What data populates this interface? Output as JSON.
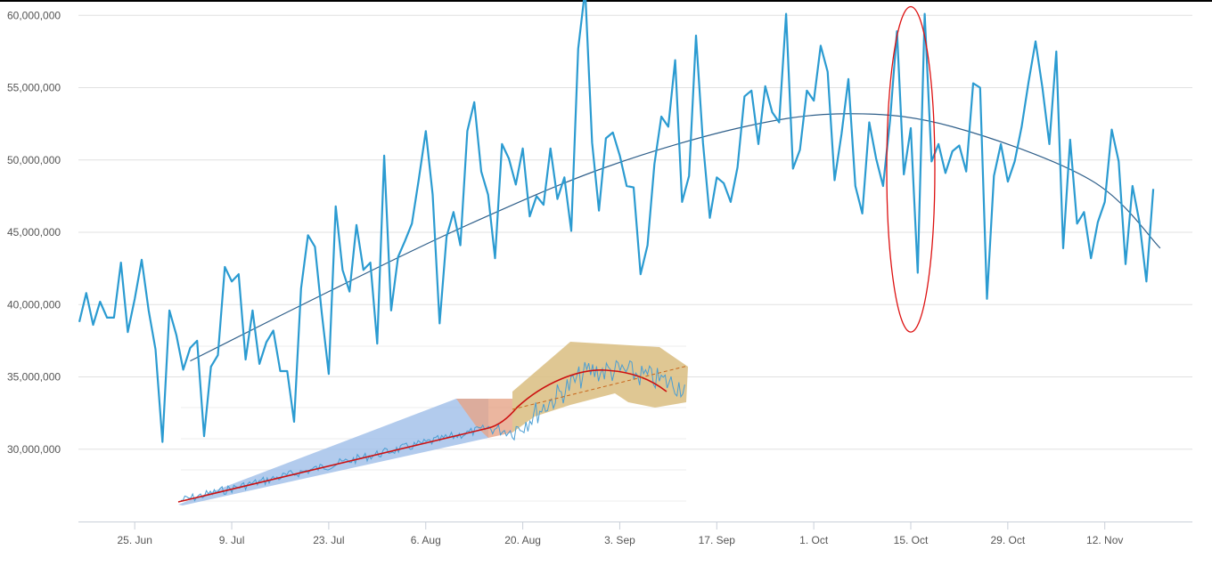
{
  "chart_data": [
    {
      "type": "line",
      "title": "",
      "xlabel": "",
      "ylabel": "",
      "ylim": [
        25000000,
        60000000
      ],
      "grid": true,
      "y_ticks": [
        {
          "value": 30000000,
          "label": "30,000,000"
        },
        {
          "value": 35000000,
          "label": "35,000,000"
        },
        {
          "value": 40000000,
          "label": "40,000,000"
        },
        {
          "value": 45000000,
          "label": "45,000,000"
        },
        {
          "value": 50000000,
          "label": "50,000,000"
        },
        {
          "value": 55000000,
          "label": "55,000,000"
        },
        {
          "value": 60000000,
          "label": "60,000,000"
        }
      ],
      "x_ticks": [
        {
          "day": 8,
          "label": "25. Jun"
        },
        {
          "day": 22,
          "label": "9. Jul"
        },
        {
          "day": 36,
          "label": "23. Jul"
        },
        {
          "day": 50,
          "label": "6. Aug"
        },
        {
          "day": 64,
          "label": "20. Aug"
        },
        {
          "day": 78,
          "label": "3. Sep"
        },
        {
          "day": 92,
          "label": "17. Sep"
        },
        {
          "day": 106,
          "label": "1. Oct"
        },
        {
          "day": 120,
          "label": "15. Oct"
        },
        {
          "day": 134,
          "label": "29. Oct"
        },
        {
          "day": 148,
          "label": "12. Nov"
        }
      ],
      "series": [
        {
          "color": "#2b9bd1",
          "x_start": "18. Jun",
          "values": [
            38.8,
            40.8,
            38.6,
            40.2,
            39.1,
            39.1,
            42.9,
            38.1,
            40.4,
            43.1,
            39.6,
            36.9,
            30.5,
            39.6,
            37.9,
            35.5,
            37.0,
            37.5,
            30.9,
            35.7,
            36.5,
            42.6,
            41.6,
            42.1,
            36.2,
            39.6,
            35.9,
            37.4,
            38.2,
            35.4,
            35.4,
            31.9,
            41.1,
            44.8,
            44.0,
            39.4,
            35.2,
            46.8,
            42.4,
            40.9,
            45.5,
            42.4,
            42.9,
            37.3,
            50.3,
            39.6,
            43.3,
            44.4,
            45.6,
            48.7,
            52.0,
            47.6,
            38.7,
            44.7,
            46.4,
            44.1,
            52.0,
            54.0,
            49.2,
            47.6,
            43.2,
            51.1,
            50.1,
            48.3,
            50.8,
            46.1,
            47.5,
            46.9,
            50.8,
            47.3,
            48.8,
            45.1,
            57.7,
            61.8,
            51.2,
            46.5,
            51.5,
            51.9,
            50.3,
            48.2,
            48.1,
            42.1,
            44.1,
            49.7,
            53.0,
            52.3,
            56.9,
            47.1,
            48.9,
            58.6,
            51.2,
            46.0,
            48.8,
            48.4,
            47.1,
            49.5,
            54.4,
            54.8,
            51.1,
            55.1,
            53.3,
            52.6,
            60.1,
            49.4,
            50.7,
            54.8,
            54.1,
            57.9,
            56.1,
            48.6,
            51.8,
            55.6,
            48.2,
            46.3,
            52.6,
            50.1,
            48.2,
            52.7,
            58.9,
            49.0,
            52.2,
            42.2,
            60.1,
            49.9,
            51.1,
            49.1,
            50.6,
            51.0,
            49.2,
            55.3,
            55.0,
            40.4,
            48.9,
            51.1,
            48.5,
            49.9,
            52.3,
            55.4,
            58.2,
            55.0,
            51.1,
            57.5,
            43.9,
            51.4,
            45.6,
            46.4,
            43.2,
            45.7,
            47.1,
            52.1,
            49.9,
            42.8,
            48.2,
            45.7,
            41.6,
            48.0
          ]
        },
        {
          "type": "trend",
          "color": "#2f5f8a",
          "values_at_day": [
            [
              16,
              36.1
            ],
            [
              36,
              40.9
            ],
            [
              56,
              45.5
            ],
            [
              76,
              49.5
            ],
            [
              96,
              52.3
            ],
            [
              111,
              53.2
            ],
            [
              126,
              52.3
            ],
            [
              146,
              48.6
            ],
            [
              156,
              43.9
            ]
          ]
        }
      ],
      "annotations": [
        {
          "type": "ellipse",
          "color": "#dd1111",
          "day": 120,
          "y_center": 49.3,
          "y_top": 60.6,
          "y_bottom": 38.1
        }
      ]
    },
    {
      "type": "line",
      "title": "",
      "series_color": "#4a9ed3",
      "trend_color": "#cc1111",
      "segments": [
        {
          "color": "#9fbee9",
          "x_range": [
            0,
            0.58
          ]
        },
        {
          "color": "#e6a487",
          "x_range": [
            0.55,
            0.66
          ]
        },
        {
          "color": "#d9bd80",
          "x_range": [
            0.66,
            1.0
          ]
        }
      ]
    }
  ]
}
